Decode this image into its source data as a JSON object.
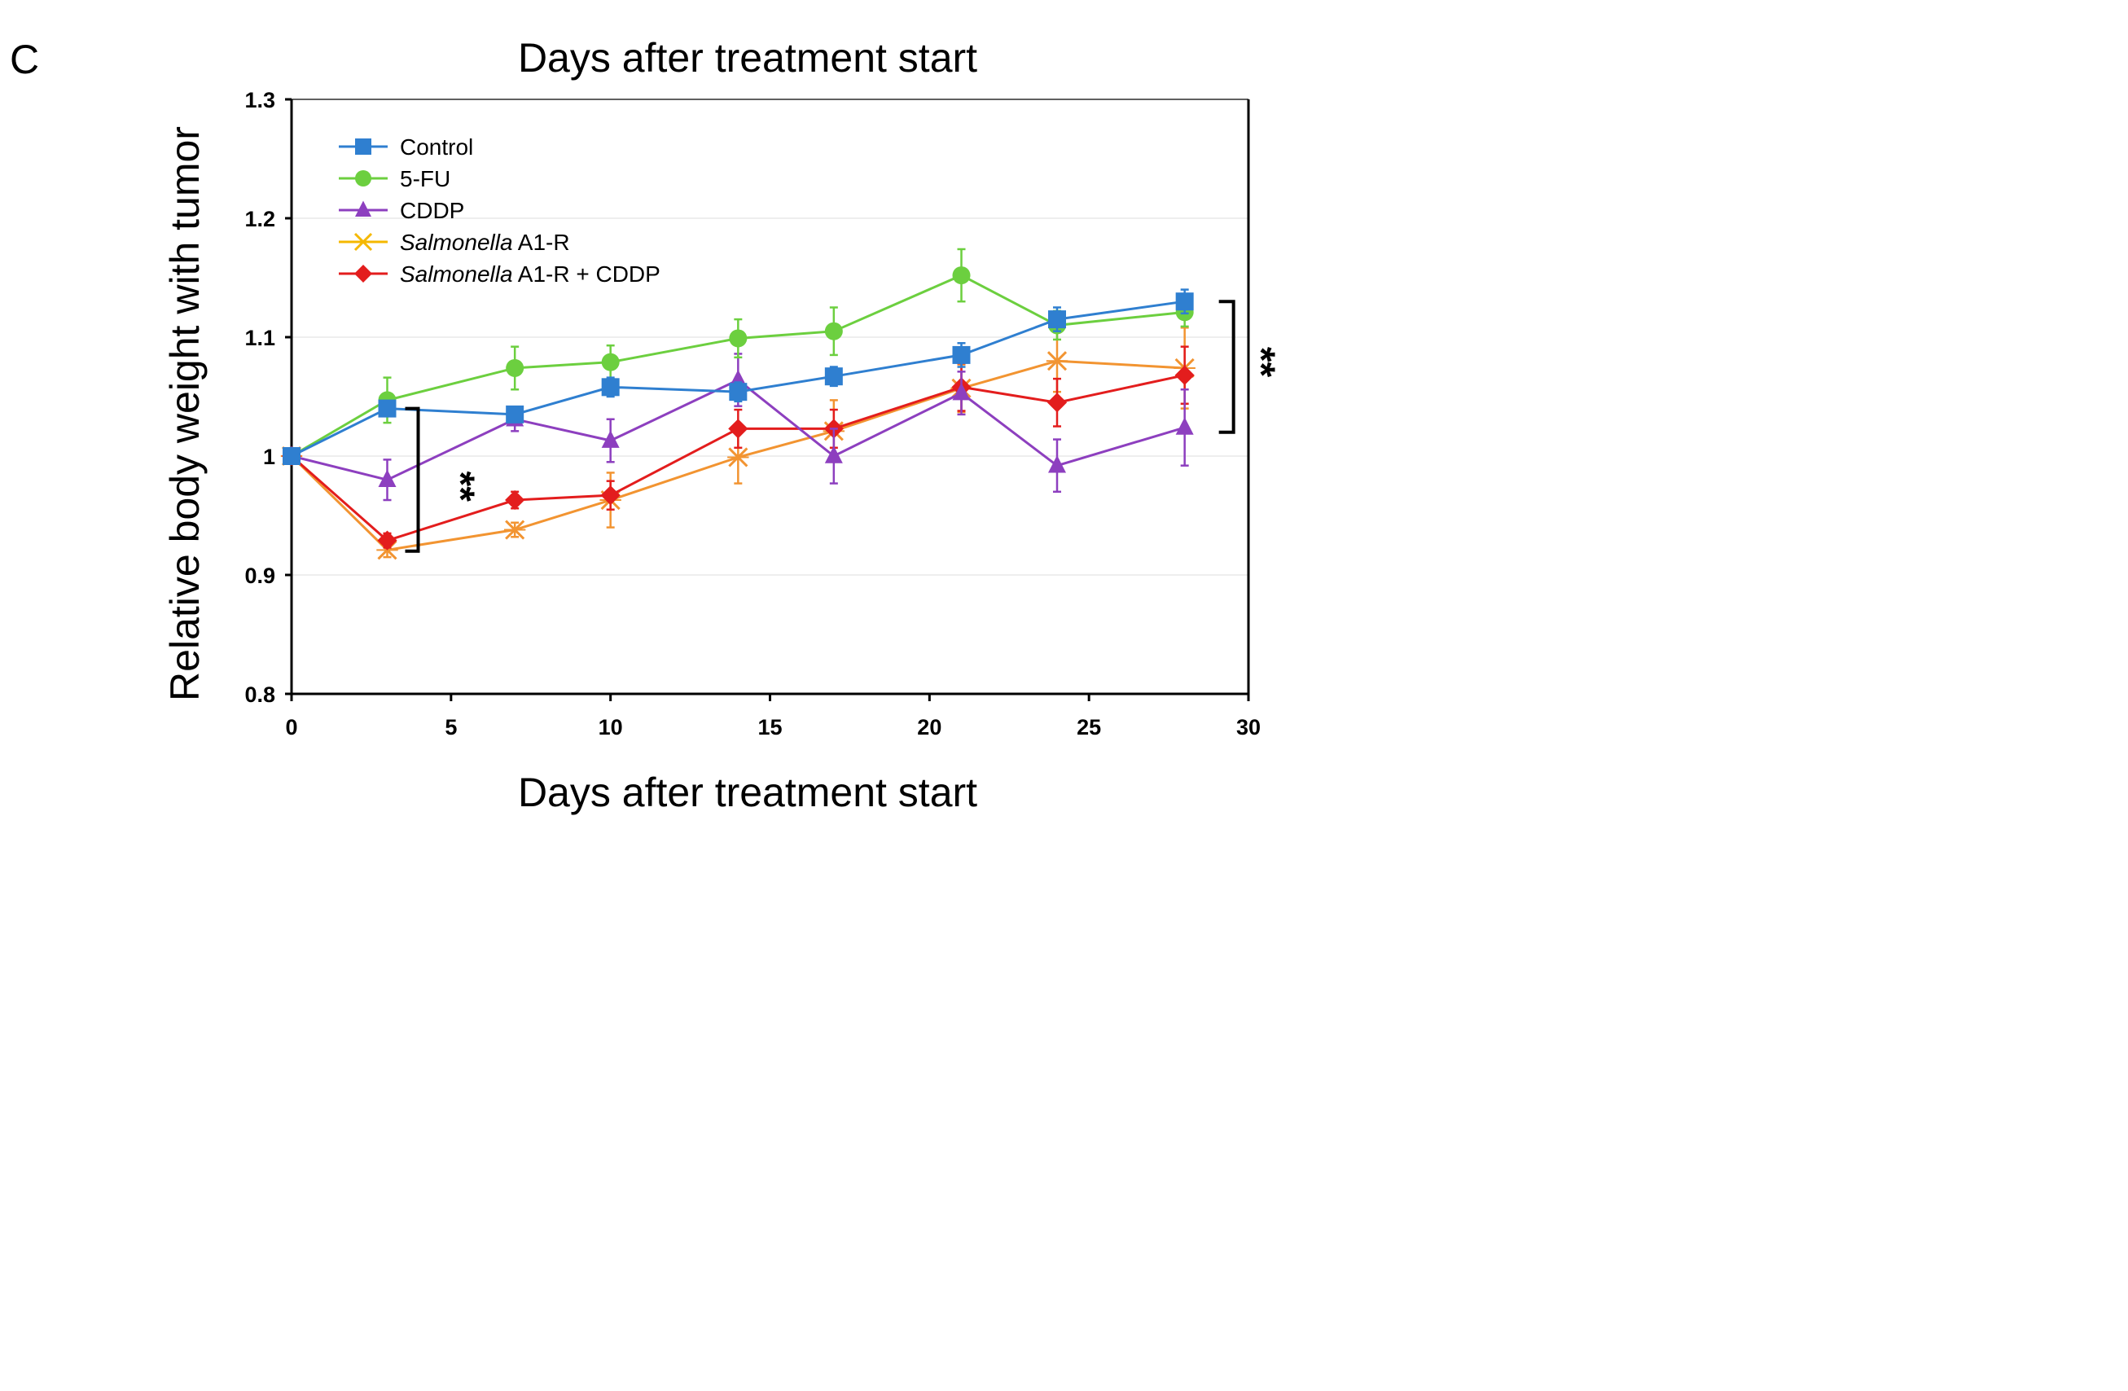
{
  "panel_label": "C",
  "chart_data": {
    "type": "line",
    "title": "Days after treatment start",
    "xlabel": "Days after treatment start",
    "ylabel": "Relative body weight with tumor",
    "xlim": [
      0,
      30
    ],
    "ylim": [
      0.8,
      1.3
    ],
    "x_ticks": [
      "0",
      "5",
      "10",
      "15",
      "20",
      "25",
      "30"
    ],
    "y_ticks": [
      "0.8",
      "0.9",
      "1",
      "1.1",
      "1.2",
      "1.3"
    ],
    "grid": "horizontal",
    "legend_position": "top-left",
    "series": [
      {
        "name": "Control",
        "color": "#2f7fd0",
        "marker": "square",
        "x": [
          0,
          3,
          7,
          10,
          14,
          17,
          21,
          24,
          28
        ],
        "y": [
          1.0,
          1.04,
          1.035,
          1.058,
          1.054,
          1.067,
          1.085,
          1.115,
          1.13
        ],
        "err": [
          0,
          0.006,
          0.006,
          0.008,
          0.008,
          0.008,
          0.01,
          0.01,
          0.01
        ]
      },
      {
        "name": "5-FU",
        "color": "#6ccf3f",
        "marker": "circle",
        "x": [
          0,
          3,
          7,
          10,
          14,
          17,
          21,
          24,
          28
        ],
        "y": [
          1.0,
          1.047,
          1.074,
          1.079,
          1.099,
          1.105,
          1.152,
          1.11,
          1.121
        ],
        "err": [
          0,
          0.019,
          0.018,
          0.014,
          0.016,
          0.02,
          0.022,
          0.012,
          0.012
        ]
      },
      {
        "name": "CDDP",
        "color": "#8d3fbf",
        "marker": "triangle",
        "x": [
          0,
          3,
          7,
          10,
          14,
          17,
          21,
          24,
          28
        ],
        "y": [
          1.0,
          0.98,
          1.031,
          1.013,
          1.064,
          1.0,
          1.053,
          0.992,
          1.024
        ],
        "err": [
          0,
          0.017,
          0.01,
          0.018,
          0.022,
          0.023,
          0.018,
          0.022,
          0.032
        ]
      },
      {
        "name_italic": "Salmonella",
        "name_rest": " A1-R",
        "color": "#f29431",
        "legend_color": "#f5b800",
        "marker": "x",
        "x": [
          0,
          3,
          7,
          10,
          14,
          17,
          21,
          24,
          28
        ],
        "y": [
          1.0,
          0.921,
          0.938,
          0.963,
          0.999,
          1.021,
          1.057,
          1.08,
          1.074
        ],
        "err": [
          0,
          0.006,
          0.006,
          0.023,
          0.022,
          0.026,
          0.02,
          0.026,
          0.034
        ]
      },
      {
        "name_italic": "Salmonella",
        "name_rest": " A1-R + CDDP",
        "color": "#e31d1d",
        "marker": "diamond",
        "x": [
          0,
          3,
          7,
          10,
          14,
          17,
          21,
          24,
          28
        ],
        "y": [
          1.0,
          0.929,
          0.963,
          0.967,
          1.023,
          1.023,
          1.058,
          1.045,
          1.068
        ],
        "err": [
          0,
          0.006,
          0.007,
          0.012,
          0.016,
          0.016,
          0.02,
          0.02,
          0.024
        ]
      }
    ],
    "annotations": [
      {
        "text": "**",
        "type": "significance-bracket",
        "day": 3,
        "y_range": [
          0.92,
          1.04
        ]
      },
      {
        "text": "**",
        "type": "significance-bracket",
        "day": 28,
        "y_range": [
          1.02,
          1.13
        ]
      }
    ]
  }
}
